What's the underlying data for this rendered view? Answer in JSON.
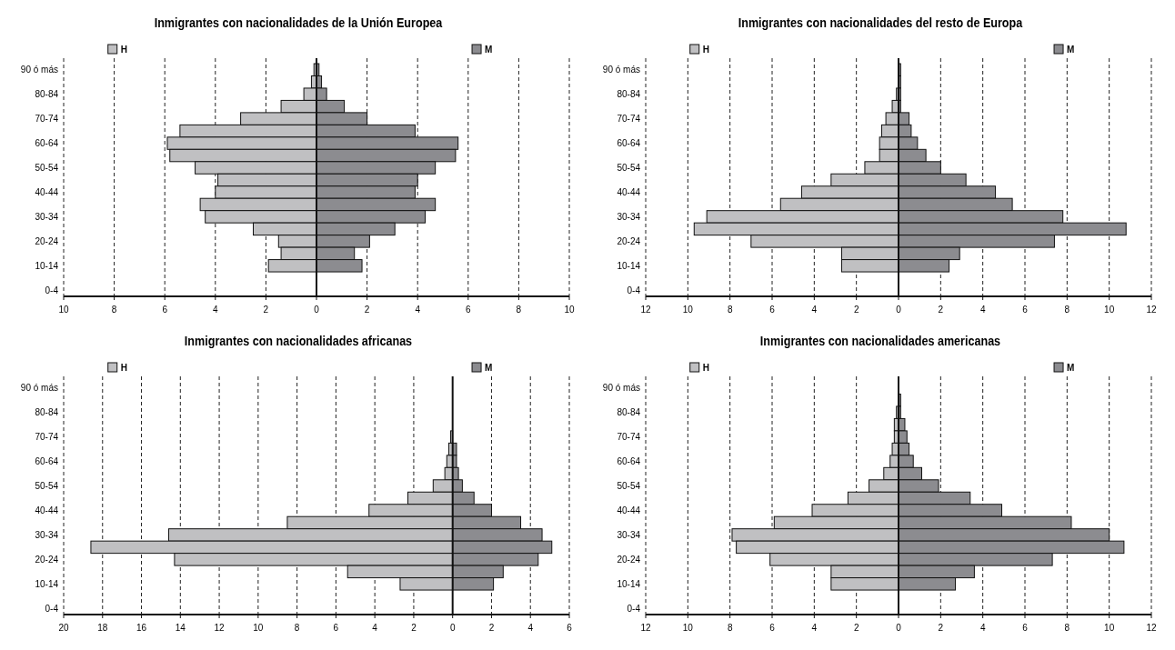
{
  "chart_data": [
    {
      "type": "bar",
      "orientation": "horizontal",
      "title": "Inmigrantes con nacionalidades de la Unión Europea",
      "categories": [
        "90 ó más",
        null,
        "80-84",
        null,
        "70-74",
        null,
        "60-64",
        null,
        "50-54",
        null,
        "40-44",
        null,
        "30-34",
        null,
        "20-24",
        null,
        "10-14",
        null,
        "0-4"
      ],
      "series": [
        {
          "name": "H",
          "color": "#c0c0c2",
          "values": [
            -0.1,
            -0.2,
            -0.5,
            -1.4,
            -3.0,
            -5.4,
            -5.9,
            -5.8,
            -4.8,
            -3.9,
            -4.0,
            -4.6,
            -4.4,
            -2.5,
            -1.5,
            -1.4,
            -1.9,
            0,
            0
          ]
        },
        {
          "name": "M",
          "color": "#8c8c90",
          "values": [
            0.1,
            0.2,
            0.4,
            1.1,
            2.0,
            3.9,
            5.6,
            5.5,
            4.7,
            4.0,
            3.9,
            4.7,
            4.3,
            3.1,
            2.1,
            1.5,
            1.8,
            0,
            0
          ]
        }
      ],
      "stacked": true,
      "legend": "top",
      "xlim": [
        -10,
        10
      ],
      "xticks": [
        {
          "value": -10,
          "label": "10"
        },
        {
          "value": -8,
          "label": "8"
        },
        {
          "value": -6,
          "label": "6"
        },
        {
          "value": -4,
          "label": "4"
        },
        {
          "value": -2,
          "label": "2"
        },
        0,
        2,
        4,
        6,
        8,
        10
      ],
      "grid": "x"
    },
    {
      "type": "bar",
      "orientation": "horizontal",
      "title": "Inmigrantes con nacionalidades del resto de Europa",
      "categories": [
        "90 ó más",
        null,
        "80-84",
        null,
        "70-74",
        null,
        "60-64",
        null,
        "50-54",
        null,
        "40-44",
        null,
        "30-34",
        null,
        "20-24",
        null,
        "10-14",
        null,
        "0-4"
      ],
      "series": [
        {
          "name": "H",
          "color": "#c0c0c2",
          "values": [
            0,
            0,
            -0.1,
            -0.3,
            -0.6,
            -0.8,
            -0.9,
            -0.9,
            -1.6,
            -3.2,
            -4.6,
            -5.6,
            -9.1,
            -9.7,
            -7.0,
            -2.7,
            -2.7,
            0,
            0
          ]
        },
        {
          "name": "M",
          "color": "#8c8c90",
          "values": [
            0.1,
            0.1,
            0.1,
            0.1,
            0.5,
            0.6,
            0.9,
            1.3,
            2.0,
            3.2,
            4.6,
            5.4,
            7.8,
            10.8,
            7.4,
            2.9,
            2.4,
            0,
            0
          ]
        }
      ],
      "stacked": true,
      "legend": "top",
      "xlim": [
        -12,
        12
      ],
      "xticks": [
        {
          "value": -12,
          "label": "12"
        },
        {
          "value": -10,
          "label": "10"
        },
        {
          "value": -8,
          "label": "8"
        },
        {
          "value": -6,
          "label": "6"
        },
        {
          "value": -4,
          "label": "4"
        },
        {
          "value": -2,
          "label": "2"
        },
        0,
        2,
        4,
        6,
        8,
        10,
        12
      ],
      "grid": "x"
    },
    {
      "type": "bar",
      "orientation": "horizontal",
      "title": "Inmigrantes con nacionalidades africanas",
      "categories": [
        "90 ó más",
        null,
        "80-84",
        null,
        "70-74",
        null,
        "60-64",
        null,
        "50-54",
        null,
        "40-44",
        null,
        "30-34",
        null,
        "20-24",
        null,
        "10-14",
        null,
        "0-4"
      ],
      "series": [
        {
          "name": "H",
          "color": "#c0c0c2",
          "values": [
            0,
            0,
            0,
            0,
            -0.1,
            -0.2,
            -0.3,
            -0.4,
            -1.0,
            -2.3,
            -4.3,
            -8.5,
            -14.6,
            -18.6,
            -14.3,
            -5.4,
            -2.7,
            0,
            0
          ]
        },
        {
          "name": "M",
          "color": "#8c8c90",
          "values": [
            0,
            0,
            0,
            null,
            null,
            0.2,
            0.2,
            0.3,
            0.5,
            1.1,
            2.0,
            3.5,
            4.6,
            5.1,
            4.4,
            2.6,
            2.1,
            0,
            0
          ]
        }
      ],
      "stacked": true,
      "legend": "top",
      "xlim": [
        -20,
        6
      ],
      "xticks": [
        {
          "value": -20,
          "label": "20"
        },
        {
          "value": -18,
          "label": "18"
        },
        {
          "value": -16,
          "label": "16"
        },
        {
          "value": -14,
          "label": "14"
        },
        {
          "value": -12,
          "label": "12"
        },
        {
          "value": -10,
          "label": "10"
        },
        {
          "value": -8,
          "label": "8"
        },
        {
          "value": -6,
          "label": "6"
        },
        {
          "value": -4,
          "label": "4"
        },
        {
          "value": -2,
          "label": "2"
        },
        0,
        2,
        4,
        6
      ],
      "grid": "x"
    },
    {
      "type": "bar",
      "orientation": "horizontal",
      "title": "Inmigrantes con nacionalidades americanas",
      "categories": [
        "90 ó más",
        null,
        "80-84",
        null,
        "70-74",
        null,
        "60-64",
        null,
        "50-54",
        null,
        "40-44",
        null,
        "30-34",
        null,
        "20-24",
        null,
        "10-14",
        null,
        "0-4"
      ],
      "series": [
        {
          "name": "H",
          "color": "#c0c0c2",
          "values": [
            0,
            0,
            -0.1,
            -0.2,
            -0.2,
            -0.3,
            -0.4,
            -0.7,
            -1.4,
            -2.4,
            -4.1,
            -5.9,
            -7.9,
            -7.7,
            -6.1,
            -3.2,
            -3.2,
            0,
            0
          ]
        },
        {
          "name": "M",
          "color": "#8c8c90",
          "values": [
            0,
            0.1,
            0.1,
            0.3,
            0.4,
            0.5,
            0.7,
            1.1,
            1.9,
            3.4,
            4.9,
            8.2,
            10.0,
            10.7,
            7.3,
            3.6,
            2.7,
            0,
            0
          ]
        }
      ],
      "stacked": true,
      "legend": "top",
      "xlim": [
        -12,
        12
      ],
      "xticks": [
        {
          "value": -12,
          "label": "12"
        },
        {
          "value": -10,
          "label": "10"
        },
        {
          "value": -8,
          "label": "8"
        },
        {
          "value": -6,
          "label": "6"
        },
        {
          "value": -4,
          "label": "4"
        },
        {
          "value": -2,
          "label": "2"
        },
        0,
        2,
        4,
        6,
        8,
        10,
        12
      ],
      "grid": "x"
    }
  ]
}
